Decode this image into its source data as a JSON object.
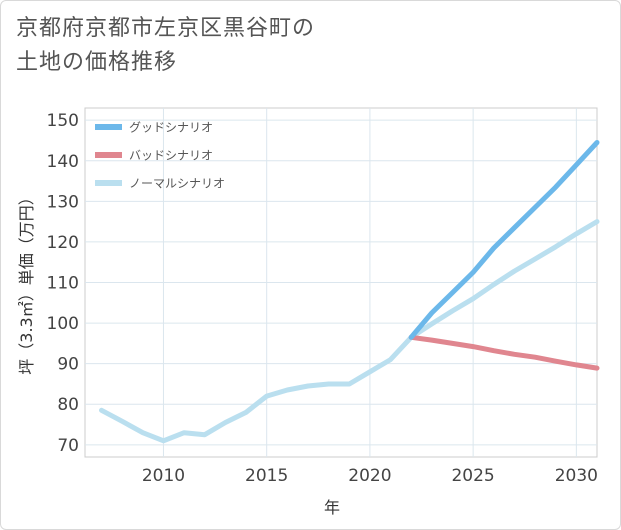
{
  "page": {
    "title_line1": "京都府京都市左京区黒谷町の",
    "title_line2": "土地の価格推移"
  },
  "chart_data": {
    "type": "line",
    "title": "京都府京都市左京区黒谷町の土地の価格推移",
    "xlabel": "年",
    "ylabel": "坪（3.3㎡）単価（万円）",
    "xlim": [
      2006.2,
      2031
    ],
    "ylim": [
      67,
      153
    ],
    "x_ticks": [
      2010,
      2015,
      2020,
      2025,
      2030
    ],
    "y_ticks": [
      70,
      80,
      90,
      100,
      110,
      120,
      130,
      140,
      150
    ],
    "series": [
      {
        "name": "グッドシナリオ",
        "color": "#6cb8ea",
        "x": [
          2022,
          2023,
          2024,
          2025,
          2026,
          2027,
          2028,
          2029,
          2030,
          2031
        ],
        "values": [
          96.5,
          102.5,
          107.5,
          112.5,
          118.5,
          123.5,
          128.5,
          133.5,
          139,
          144.5
        ]
      },
      {
        "name": "バッドシナリオ",
        "color": "#e0868f",
        "x": [
          2022,
          2023,
          2024,
          2025,
          2026,
          2027,
          2028,
          2029,
          2030,
          2031
        ],
        "values": [
          96.5,
          95.8,
          95,
          94.2,
          93.2,
          92.3,
          91.6,
          90.6,
          89.7,
          88.9
        ]
      },
      {
        "name": "ノーマルシナリオ",
        "color": "#badfef",
        "x": [
          2007,
          2008,
          2009,
          2010,
          2011,
          2012,
          2013,
          2014,
          2015,
          2016,
          2017,
          2018,
          2019,
          2020,
          2021,
          2022,
          2023,
          2024,
          2025,
          2026,
          2027,
          2028,
          2029,
          2030,
          2031
        ],
        "values": [
          78.5,
          75.8,
          73,
          71,
          73,
          72.5,
          75.5,
          78,
          82,
          83.5,
          84.5,
          85,
          85,
          88,
          91,
          96.5,
          99.8,
          103,
          106,
          109.5,
          112.8,
          115.8,
          118.8,
          122,
          125
        ]
      }
    ],
    "legend_position": "top-left"
  }
}
